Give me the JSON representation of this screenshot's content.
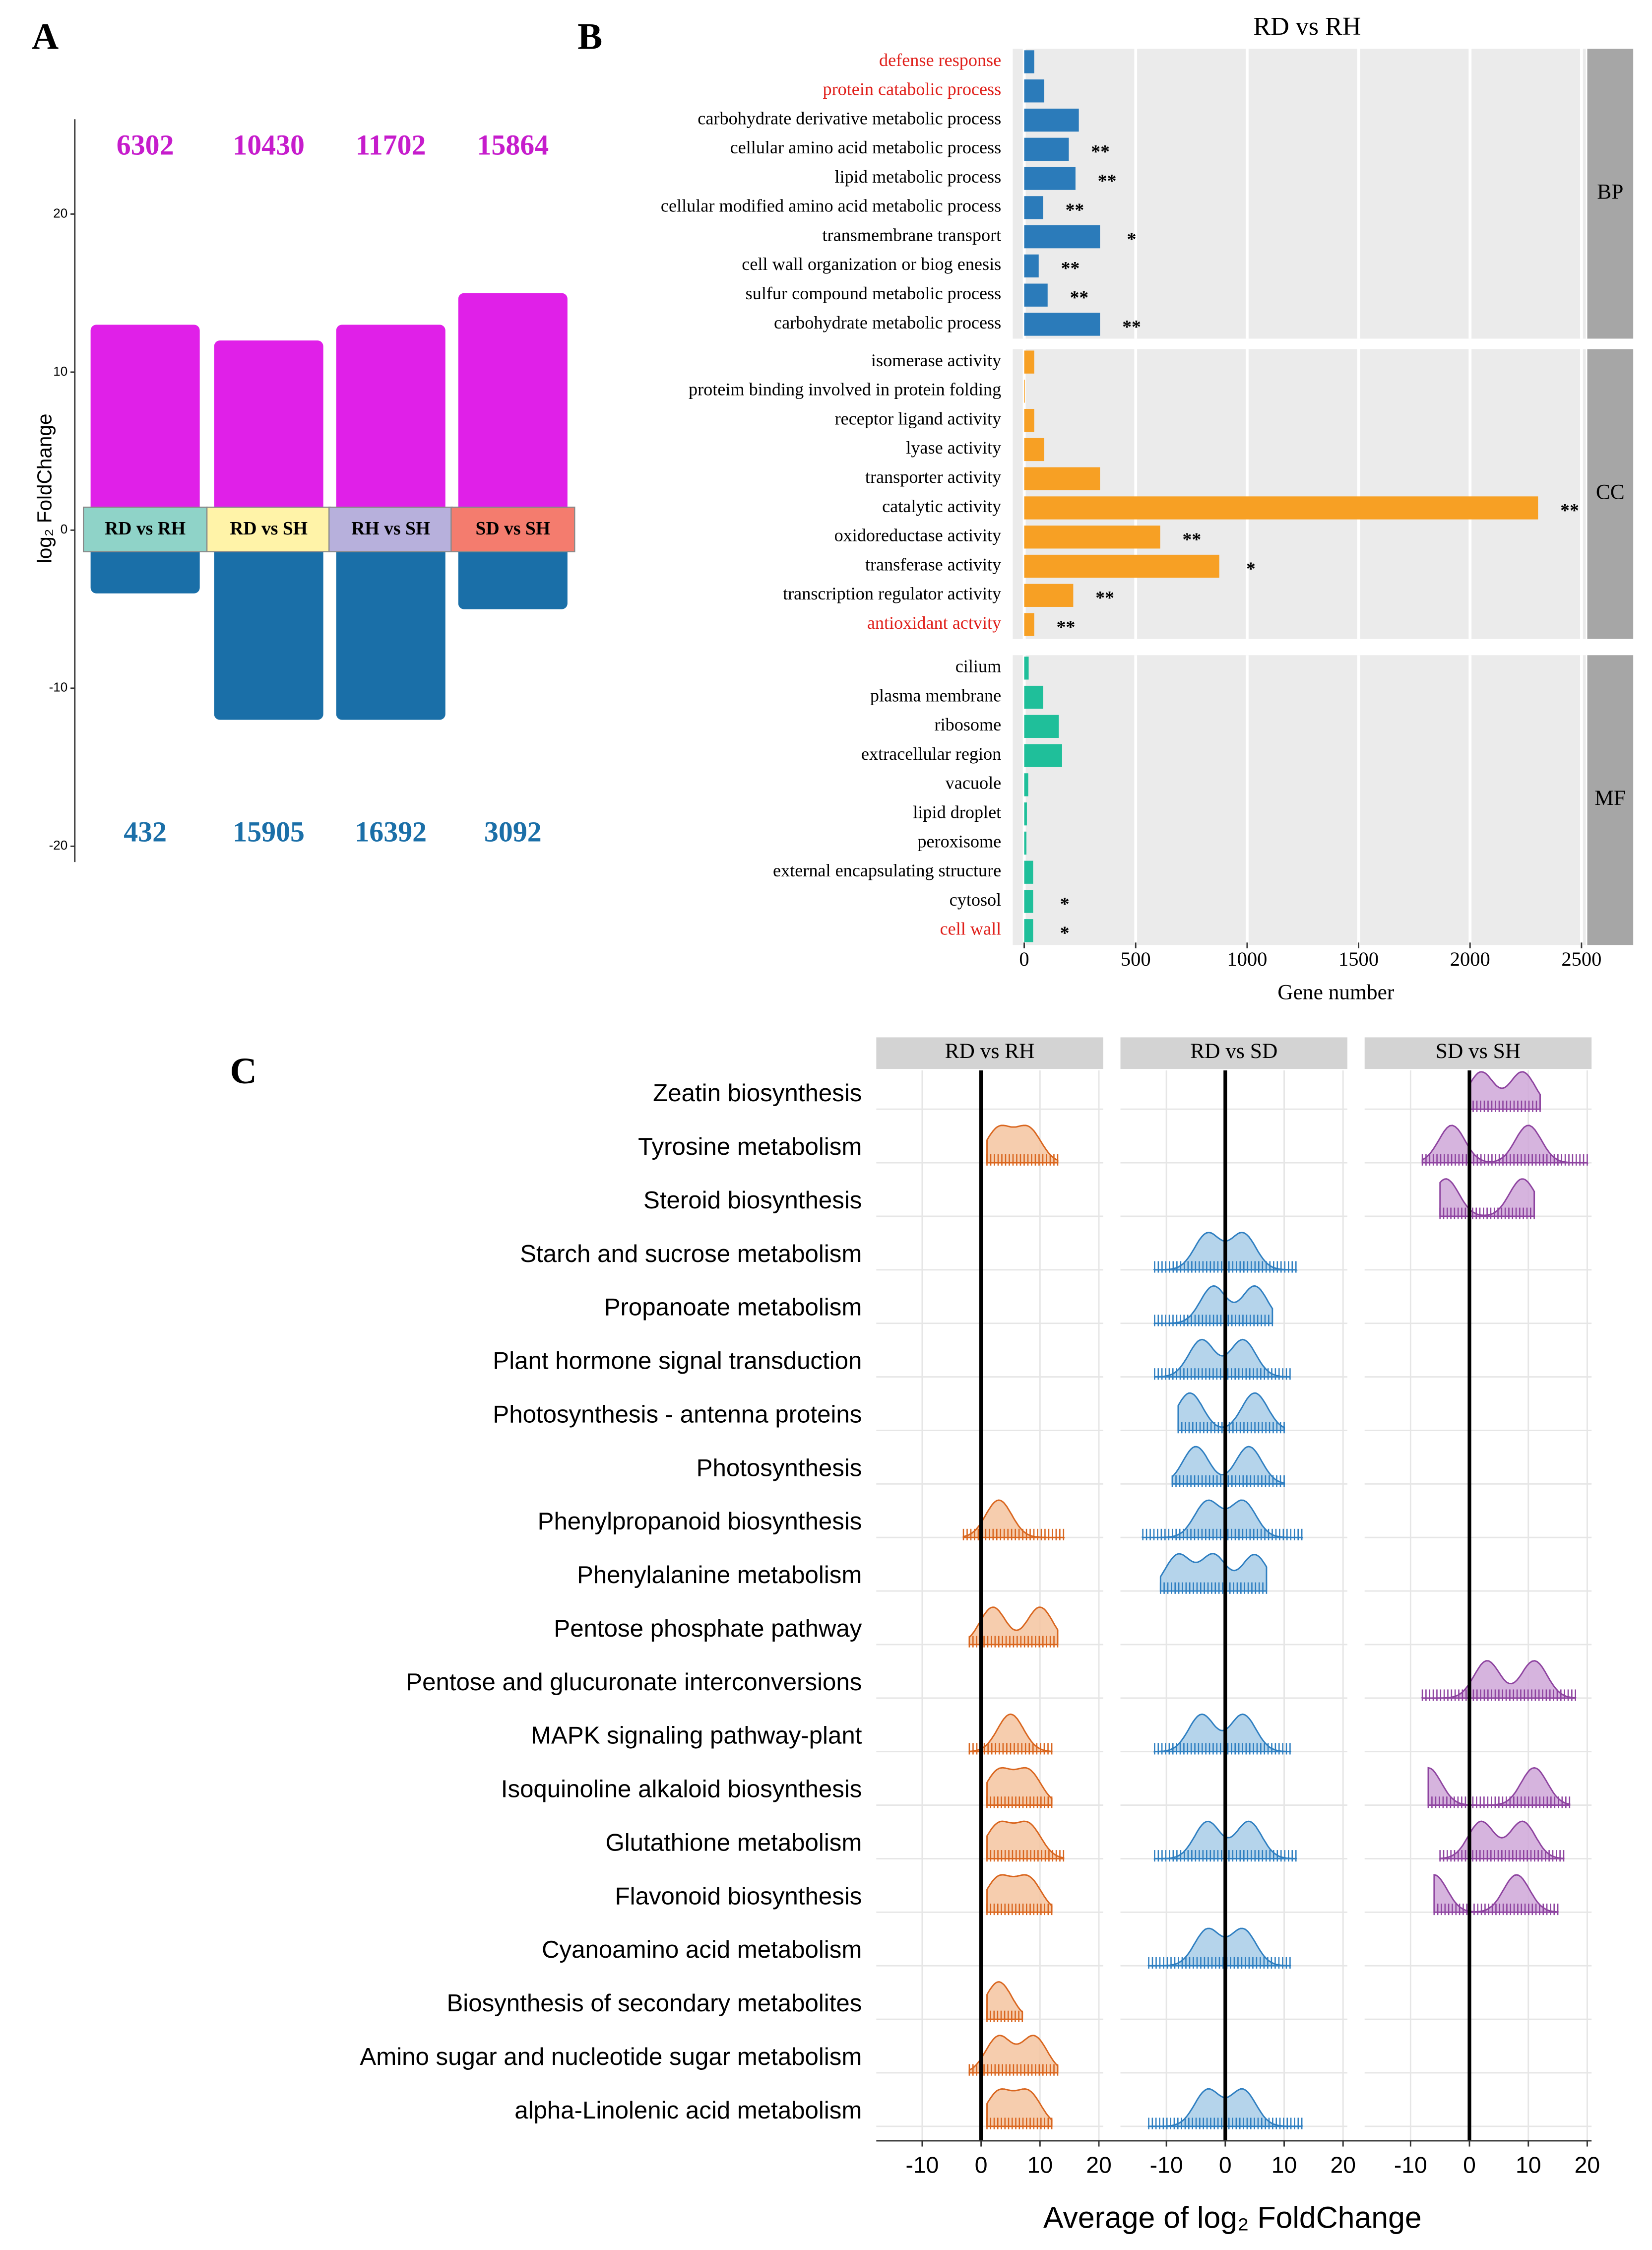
{
  "chart_data": [
    {
      "type": "strip",
      "panel_label": "A",
      "ylabel": "log₂ FoldChange",
      "categories": [
        "RD vs RH",
        "RD vs SH",
        "RH vs SH",
        "SD vs SH"
      ],
      "box_colors": [
        "#8fd3c8",
        "#fff3a8",
        "#b7b0dc",
        "#f47c6e"
      ],
      "up_counts": [
        6302,
        10430,
        11702,
        15864
      ],
      "down_counts": [
        432,
        15905,
        16392,
        3092
      ],
      "up_extent": [
        13,
        12,
        13,
        15
      ],
      "down_extent": [
        -4,
        -12,
        -12,
        -5
      ],
      "up_color": "#e020e8",
      "down_color": "#1a6fa8",
      "up_text_color": "#c61ccc",
      "down_text_color": "#1b6fa8",
      "ylim": [
        -21,
        26
      ],
      "yticks": [
        -20,
        -10,
        0,
        10,
        20
      ]
    },
    {
      "type": "bar",
      "panel_label": "B",
      "title": "RD vs RH",
      "xlabel": "Gene number",
      "xlim": [
        0,
        2500
      ],
      "xticks": [
        0,
        500,
        1000,
        1500,
        2000,
        2500
      ],
      "facets": [
        {
          "name": "BP",
          "color": "#2b7bba",
          "categories": [
            "defense response",
            "protein catabolic process",
            "carbohydrate derivative metabolic process",
            "cellular amino acid metabolic process",
            "lipid metabolic process",
            "cellular modified amino acid metabolic process",
            "transmembrane transport",
            "cell wall organization or biog enesis",
            "sulfur compound metabolic process",
            "carbohydrate metabolic process"
          ],
          "values": [
            45,
            90,
            245,
            200,
            230,
            85,
            340,
            65,
            105,
            340
          ],
          "annotations": [
            null,
            null,
            null,
            "**",
            "**",
            "**",
            "*",
            "**",
            "**",
            "**"
          ],
          "label_colors": [
            "#e0201b",
            "#e0201b",
            "#000",
            "#000",
            "#000",
            "#000",
            "#000",
            "#000",
            "#000",
            "#000"
          ]
        },
        {
          "name": "CC",
          "color": "#f7a024",
          "categories": [
            "isomerase activity",
            "proteim binding involved in protein folding",
            "receptor ligand activity",
            "lyase activity",
            "transporter activity",
            "catalytic activity",
            "oxidoreductase activity",
            "transferase activity",
            "transcription regulator activity",
            "antioxidant actvity"
          ],
          "values": [
            45,
            3,
            45,
            90,
            340,
            2305,
            610,
            875,
            220,
            45
          ],
          "annotations": [
            null,
            null,
            null,
            null,
            null,
            "**",
            "**",
            "*",
            "**",
            "**"
          ],
          "label_colors": [
            "#000",
            "#000",
            "#000",
            "#000",
            "#000",
            "#000",
            "#000",
            "#000",
            "#000",
            "#e0201b"
          ]
        },
        {
          "name": "MF",
          "color": "#1fbf9a",
          "categories": [
            "cilium",
            "plasma membrane",
            "ribosome",
            "extracellular region",
            "vacuole",
            "lipid droplet",
            "peroxisome",
            "external encapsulating structure",
            "cytosol",
            "cell wall"
          ],
          "values": [
            20,
            85,
            155,
            170,
            18,
            12,
            10,
            40,
            40,
            40
          ],
          "annotations": [
            null,
            null,
            null,
            null,
            null,
            null,
            null,
            null,
            "*",
            "*"
          ],
          "label_colors": [
            "#000",
            "#000",
            "#000",
            "#000",
            "#000",
            "#000",
            "#000",
            "#000",
            "#000",
            "#e0201b"
          ]
        }
      ]
    },
    {
      "type": "ridgeline",
      "panel_label": "C",
      "xlabel": "Average of log₂ FoldChange",
      "xlim": [
        -17.8,
        21.2
      ],
      "xticks": [
        -10,
        0,
        10,
        20
      ],
      "categories": [
        "Zeatin biosynthesis",
        "Tyrosine metabolism",
        "Steroid biosynthesis",
        "Starch and sucrose metabolism",
        "Propanoate metabolism",
        "Plant hormone signal transduction",
        "Photosynthesis - antenna proteins",
        "Photosynthesis",
        "Phenylpropanoid biosynthesis",
        "Phenylalanine metabolism",
        "Pentose phosphate pathway",
        "Pentose and glucuronate interconversions",
        "MAPK signaling pathway-plant",
        "Isoquinoline alkaloid biosynthesis",
        "Glutathione metabolism",
        "Flavonoid biosynthesis",
        "Cyanoamino acid metabolism",
        "Biosynthesis of secondary metabolites",
        "Amino sugar and nucleotide sugar metabolism",
        "alpha-Linolenic acid metabolism"
      ],
      "facets": [
        {
          "name": "RD vs RH",
          "color": "#d9661f",
          "fill": "#f4c4a0",
          "peaks": [
            null,
            [
              3,
              8
            ],
            null,
            null,
            null,
            null,
            null,
            null,
            [
              3
            ],
            null,
            [
              2,
              10
            ],
            null,
            [
              5
            ],
            [
              8,
              3
            ],
            [
              3,
              8
            ],
            [
              3,
              8
            ],
            null,
            [
              3
            ],
            [
              3,
              9
            ],
            [
              3,
              8
            ]
          ],
          "ranges": [
            null,
            [
              1,
              13
            ],
            null,
            null,
            null,
            null,
            null,
            null,
            [
              -3,
              14
            ],
            null,
            [
              -2,
              13
            ],
            null,
            [
              -2,
              12
            ],
            [
              1,
              12
            ],
            [
              1,
              14
            ],
            [
              1,
              12
            ],
            null,
            [
              1,
              7
            ],
            [
              -2,
              13
            ],
            [
              1,
              12
            ]
          ]
        },
        {
          "name": "RD vs SD",
          "color": "#2f7fc1",
          "fill": "#a8cde8",
          "peaks": [
            null,
            null,
            null,
            [
              -3,
              3
            ],
            [
              -2,
              5
            ],
            [
              -4,
              3
            ],
            [
              -6,
              5
            ],
            [
              -5,
              4
            ],
            [
              -3,
              3
            ],
            [
              -8,
              -2,
              5
            ],
            null,
            null,
            [
              -4,
              3
            ],
            null,
            [
              -3,
              4
            ],
            null,
            [
              -3,
              3
            ],
            null,
            null,
            [
              -3,
              3
            ]
          ],
          "ranges": [
            null,
            null,
            null,
            [
              -12,
              12
            ],
            [
              -12,
              8
            ],
            [
              -12,
              11
            ],
            [
              -8,
              10
            ],
            [
              -9,
              10
            ],
            [
              -14,
              13
            ],
            [
              -11,
              7
            ],
            null,
            null,
            [
              -12,
              11
            ],
            null,
            [
              -12,
              12
            ],
            null,
            [
              -13,
              11
            ],
            null,
            null,
            [
              -13,
              13
            ]
          ]
        },
        {
          "name": "SD vs SH",
          "color": "#8e44a0",
          "fill": "#cfa7d8",
          "peaks": [
            [
              2,
              9
            ],
            [
              -3,
              10
            ],
            [
              -4,
              9
            ],
            null,
            null,
            null,
            null,
            null,
            null,
            null,
            null,
            [
              3,
              11
            ],
            null,
            [
              -7,
              11
            ],
            [
              2,
              9
            ],
            [
              -6,
              8
            ],
            null,
            null,
            null,
            null
          ],
          "ranges": [
            [
              0,
              12
            ],
            [
              -8,
              20
            ],
            [
              -5,
              11
            ],
            null,
            null,
            null,
            null,
            null,
            null,
            null,
            null,
            [
              -8,
              18
            ],
            null,
            [
              -7,
              17
            ],
            [
              -5,
              16
            ],
            [
              -6,
              15
            ],
            null,
            null,
            null,
            null
          ]
        }
      ]
    }
  ]
}
